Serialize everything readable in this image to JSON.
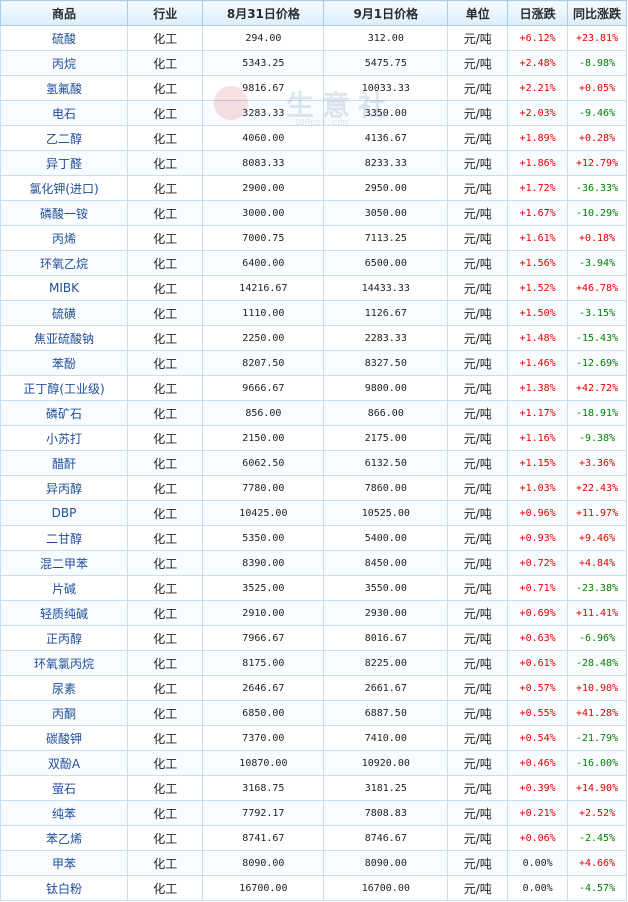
{
  "header": {
    "product": "商品",
    "industry": "行业",
    "price_prev": "8月31日价格",
    "price_curr": "9月1日价格",
    "unit": "单位",
    "daily_change": "日涨跌",
    "yoy_change": "同比涨跌"
  },
  "watermark": {
    "text": "生意社",
    "url": "100ppi.com"
  },
  "colors": {
    "up": "#e00000",
    "down": "#008000",
    "header_bg": "#dceefc",
    "link": "#1f4e9a"
  },
  "rows": [
    {
      "name": "硫酸",
      "industry": "化工",
      "prev": "294.00",
      "curr": "312.00",
      "unit": "元/吨",
      "day": "+6.12%",
      "yoy": "+23.81%"
    },
    {
      "name": "丙烷",
      "industry": "化工",
      "prev": "5343.25",
      "curr": "5475.75",
      "unit": "元/吨",
      "day": "+2.48%",
      "yoy": "-8.98%"
    },
    {
      "name": "氢氟酸",
      "industry": "化工",
      "prev": "9816.67",
      "curr": "10033.33",
      "unit": "元/吨",
      "day": "+2.21%",
      "yoy": "+0.05%"
    },
    {
      "name": "电石",
      "industry": "化工",
      "prev": "3283.33",
      "curr": "3350.00",
      "unit": "元/吨",
      "day": "+2.03%",
      "yoy": "-9.46%"
    },
    {
      "name": "乙二醇",
      "industry": "化工",
      "prev": "4060.00",
      "curr": "4136.67",
      "unit": "元/吨",
      "day": "+1.89%",
      "yoy": "+0.28%"
    },
    {
      "name": "异丁醛",
      "industry": "化工",
      "prev": "8083.33",
      "curr": "8233.33",
      "unit": "元/吨",
      "day": "+1.86%",
      "yoy": "+12.79%"
    },
    {
      "name": "氯化钾(进口)",
      "industry": "化工",
      "prev": "2900.00",
      "curr": "2950.00",
      "unit": "元/吨",
      "day": "+1.72%",
      "yoy": "-36.33%"
    },
    {
      "name": "磷酸一铵",
      "industry": "化工",
      "prev": "3000.00",
      "curr": "3050.00",
      "unit": "元/吨",
      "day": "+1.67%",
      "yoy": "-10.29%"
    },
    {
      "name": "丙烯",
      "industry": "化工",
      "prev": "7000.75",
      "curr": "7113.25",
      "unit": "元/吨",
      "day": "+1.61%",
      "yoy": "+0.18%"
    },
    {
      "name": "环氧乙烷",
      "industry": "化工",
      "prev": "6400.00",
      "curr": "6500.00",
      "unit": "元/吨",
      "day": "+1.56%",
      "yoy": "-3.94%"
    },
    {
      "name": "MIBK",
      "industry": "化工",
      "prev": "14216.67",
      "curr": "14433.33",
      "unit": "元/吨",
      "day": "+1.52%",
      "yoy": "+46.78%"
    },
    {
      "name": "硫磺",
      "industry": "化工",
      "prev": "1110.00",
      "curr": "1126.67",
      "unit": "元/吨",
      "day": "+1.50%",
      "yoy": "-3.15%"
    },
    {
      "name": "焦亚硫酸钠",
      "industry": "化工",
      "prev": "2250.00",
      "curr": "2283.33",
      "unit": "元/吨",
      "day": "+1.48%",
      "yoy": "-15.43%"
    },
    {
      "name": "苯酚",
      "industry": "化工",
      "prev": "8207.50",
      "curr": "8327.50",
      "unit": "元/吨",
      "day": "+1.46%",
      "yoy": "-12.69%"
    },
    {
      "name": "正丁醇(工业级)",
      "industry": "化工",
      "prev": "9666.67",
      "curr": "9800.00",
      "unit": "元/吨",
      "day": "+1.38%",
      "yoy": "+42.72%"
    },
    {
      "name": "磷矿石",
      "industry": "化工",
      "prev": "856.00",
      "curr": "866.00",
      "unit": "元/吨",
      "day": "+1.17%",
      "yoy": "-18.91%"
    },
    {
      "name": "小苏打",
      "industry": "化工",
      "prev": "2150.00",
      "curr": "2175.00",
      "unit": "元/吨",
      "day": "+1.16%",
      "yoy": "-9.38%"
    },
    {
      "name": "醋酐",
      "industry": "化工",
      "prev": "6062.50",
      "curr": "6132.50",
      "unit": "元/吨",
      "day": "+1.15%",
      "yoy": "+3.36%"
    },
    {
      "name": "异丙醇",
      "industry": "化工",
      "prev": "7780.00",
      "curr": "7860.00",
      "unit": "元/吨",
      "day": "+1.03%",
      "yoy": "+22.43%"
    },
    {
      "name": "DBP",
      "industry": "化工",
      "prev": "10425.00",
      "curr": "10525.00",
      "unit": "元/吨",
      "day": "+0.96%",
      "yoy": "+11.97%"
    },
    {
      "name": "二甘醇",
      "industry": "化工",
      "prev": "5350.00",
      "curr": "5400.00",
      "unit": "元/吨",
      "day": "+0.93%",
      "yoy": "+9.46%"
    },
    {
      "name": "混二甲苯",
      "industry": "化工",
      "prev": "8390.00",
      "curr": "8450.00",
      "unit": "元/吨",
      "day": "+0.72%",
      "yoy": "+4.84%"
    },
    {
      "name": "片碱",
      "industry": "化工",
      "prev": "3525.00",
      "curr": "3550.00",
      "unit": "元/吨",
      "day": "+0.71%",
      "yoy": "-23.38%"
    },
    {
      "name": "轻质纯碱",
      "industry": "化工",
      "prev": "2910.00",
      "curr": "2930.00",
      "unit": "元/吨",
      "day": "+0.69%",
      "yoy": "+11.41%"
    },
    {
      "name": "正丙醇",
      "industry": "化工",
      "prev": "7966.67",
      "curr": "8016.67",
      "unit": "元/吨",
      "day": "+0.63%",
      "yoy": "-6.96%"
    },
    {
      "name": "环氧氯丙烷",
      "industry": "化工",
      "prev": "8175.00",
      "curr": "8225.00",
      "unit": "元/吨",
      "day": "+0.61%",
      "yoy": "-28.48%"
    },
    {
      "name": "尿素",
      "industry": "化工",
      "prev": "2646.67",
      "curr": "2661.67",
      "unit": "元/吨",
      "day": "+0.57%",
      "yoy": "+10.90%"
    },
    {
      "name": "丙酮",
      "industry": "化工",
      "prev": "6850.00",
      "curr": "6887.50",
      "unit": "元/吨",
      "day": "+0.55%",
      "yoy": "+41.28%"
    },
    {
      "name": "碳酸钾",
      "industry": "化工",
      "prev": "7370.00",
      "curr": "7410.00",
      "unit": "元/吨",
      "day": "+0.54%",
      "yoy": "-21.79%"
    },
    {
      "name": "双酚A",
      "industry": "化工",
      "prev": "10870.00",
      "curr": "10920.00",
      "unit": "元/吨",
      "day": "+0.46%",
      "yoy": "-16.00%"
    },
    {
      "name": "萤石",
      "industry": "化工",
      "prev": "3168.75",
      "curr": "3181.25",
      "unit": "元/吨",
      "day": "+0.39%",
      "yoy": "+14.90%"
    },
    {
      "name": "纯苯",
      "industry": "化工",
      "prev": "7792.17",
      "curr": "7808.83",
      "unit": "元/吨",
      "day": "+0.21%",
      "yoy": "+2.52%"
    },
    {
      "name": "苯乙烯",
      "industry": "化工",
      "prev": "8741.67",
      "curr": "8746.67",
      "unit": "元/吨",
      "day": "+0.06%",
      "yoy": "-2.45%"
    },
    {
      "name": "甲苯",
      "industry": "化工",
      "prev": "8090.00",
      "curr": "8090.00",
      "unit": "元/吨",
      "day": "0.00%",
      "yoy": "+4.66%"
    },
    {
      "name": "钛白粉",
      "industry": "化工",
      "prev": "16700.00",
      "curr": "16700.00",
      "unit": "元/吨",
      "day": "0.00%",
      "yoy": "-4.57%"
    }
  ]
}
